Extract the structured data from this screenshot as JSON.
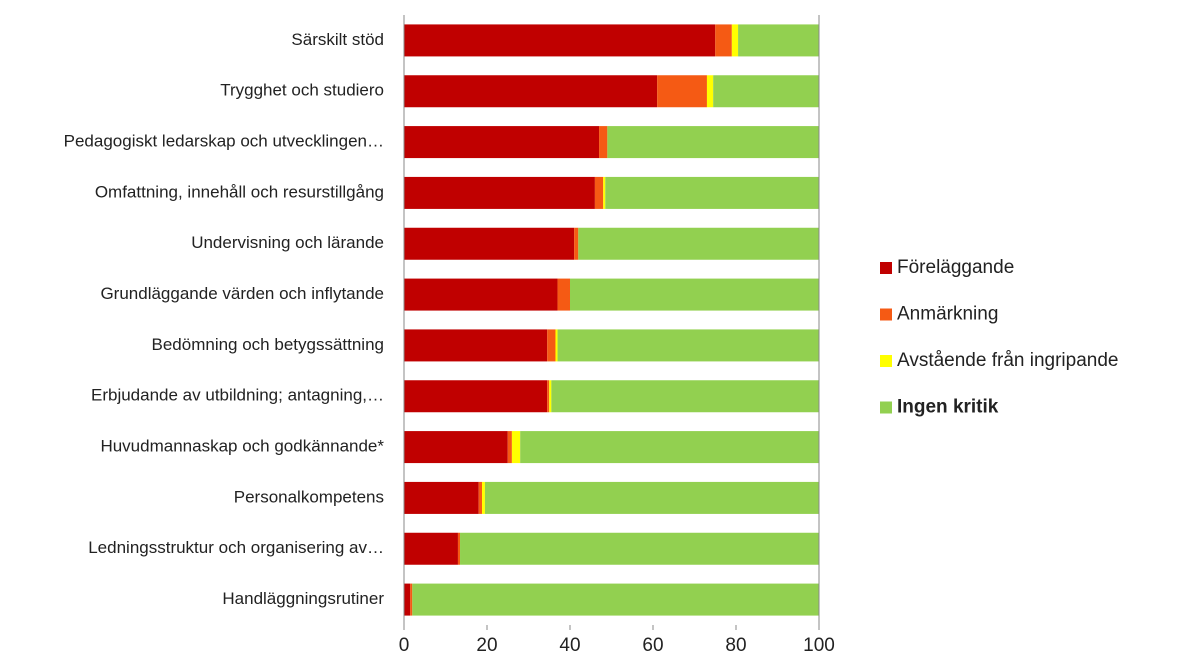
{
  "chart_data": {
    "type": "stacked_barh",
    "categories": [
      "Särskilt stöd",
      "Trygghet och studiero",
      "Pedagogiskt ledarskap och utvecklingen…",
      "Omfattning, innehåll och resurstillgång",
      "Undervisning och lärande",
      "Grundläggande värden och inflytande",
      "Bedömning och betygssättning",
      "Erbjudande av utbildning; antagning,…",
      "Huvudmannaskap och godkännande*",
      "Personalkompetens",
      "Ledningsstruktur och organisering av…",
      "Handläggningsrutiner"
    ],
    "series": [
      {
        "name": "Föreläggande",
        "color": "#c00000",
        "values": [
          75,
          61,
          47,
          46,
          41,
          37,
          34.5,
          34.5,
          25,
          18,
          13,
          1.5
        ]
      },
      {
        "name": "Anmärkning",
        "color": "#f55a14",
        "values": [
          4,
          12,
          2,
          2,
          1,
          3,
          2,
          0.5,
          1,
          0.8,
          0.5,
          0.5
        ]
      },
      {
        "name": "Avstående från ingripande",
        "color": "#ffff00",
        "values": [
          1.5,
          1.5,
          0,
          0.5,
          0,
          0,
          0.5,
          0.5,
          2,
          0.7,
          0,
          0
        ]
      },
      {
        "name": "Ingen kritik",
        "color": "#92d050",
        "values": [
          19.5,
          25.5,
          51,
          51.5,
          58,
          60,
          63,
          64.5,
          72,
          80.5,
          86.5,
          98
        ]
      }
    ],
    "xlim": [
      0,
      100
    ],
    "xticks": [
      0,
      20,
      40,
      60,
      80,
      100
    ],
    "legend": "right"
  }
}
